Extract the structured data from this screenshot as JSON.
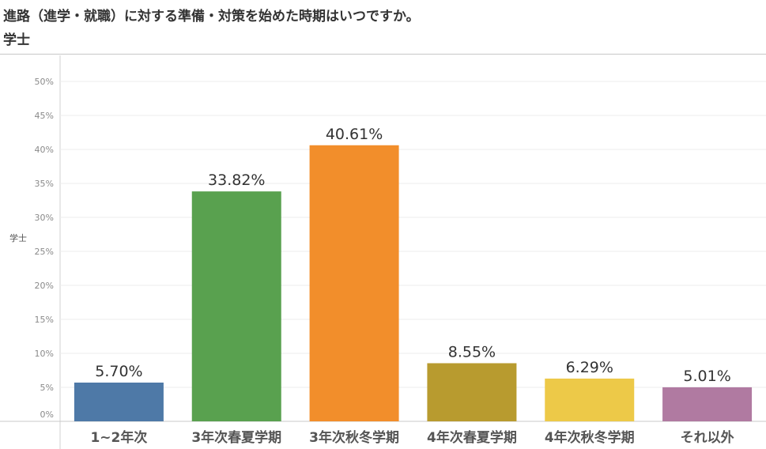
{
  "header": {
    "title": "進路（進学・就職）に対する準備・対策を始めた時期はいつですか。",
    "subtitle": "学士"
  },
  "chart_data": {
    "type": "bar",
    "categories": [
      "1~2年次",
      "3年次春夏学期",
      "3年次秋冬学期",
      "4年次春夏学期",
      "4年次秋冬学期",
      "それ以外"
    ],
    "values": [
      5.7,
      33.82,
      40.61,
      8.55,
      6.29,
      5.01
    ],
    "value_labels": [
      "5.70%",
      "33.82%",
      "40.61%",
      "8.55%",
      "6.29%",
      "5.01%"
    ],
    "colors": [
      "#4e79a7",
      "#59a14f",
      "#f28e2b",
      "#b89b2f",
      "#edc948",
      "#b07aa1"
    ],
    "ylabel": "学士",
    "ylim": [
      0,
      50
    ],
    "yticks": [
      0,
      5,
      10,
      15,
      20,
      25,
      30,
      35,
      40,
      45,
      50
    ],
    "ytick_labels": [
      "0%",
      "5%",
      "10%",
      "15%",
      "20%",
      "25%",
      "30%",
      "35%",
      "40%",
      "45%",
      "50%"
    ],
    "grid": true
  }
}
